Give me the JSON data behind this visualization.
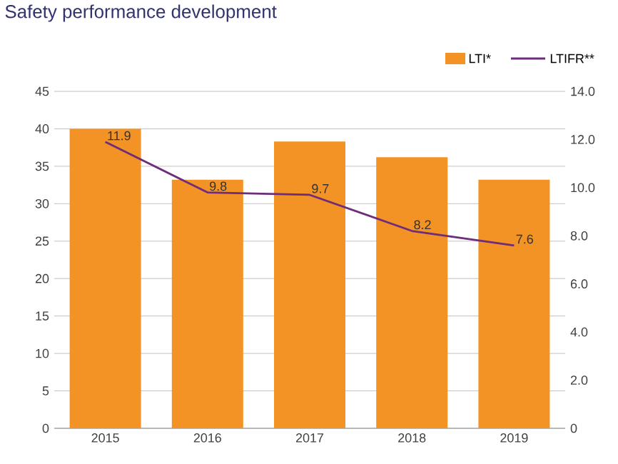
{
  "chart_data": {
    "type": "bar",
    "title": "Safety performance development",
    "categories": [
      "2015",
      "2016",
      "2017",
      "2018",
      "2019"
    ],
    "series": [
      {
        "name": "LTI*",
        "color": "#f39325",
        "values": [
          40,
          33.2,
          38.3,
          36.2,
          33.2
        ]
      },
      {
        "name": "LTIFR**",
        "type": "line",
        "axis": "y2",
        "color": "#6e2c7a",
        "values": [
          11.9,
          9.8,
          9.7,
          8.2,
          7.6
        ],
        "value_labels": [
          "11.9",
          "9.8",
          "9.7",
          "8.2",
          "7.6"
        ]
      }
    ],
    "ylim": [
      0,
      45
    ],
    "yticks": [
      0,
      5,
      10,
      15,
      20,
      25,
      30,
      35,
      40,
      45
    ],
    "y2lim": [
      0,
      14
    ],
    "y2ticks": [
      0,
      {
        "value": 2,
        "label": "2.0"
      },
      {
        "value": 4,
        "label": "4.0"
      },
      {
        "value": 6,
        "label": "6.0"
      },
      {
        "value": 8,
        "label": "8.0"
      },
      {
        "value": 10,
        "label": "10.0"
      },
      {
        "value": 12,
        "label": "12.0"
      },
      {
        "value": 14,
        "label": "14.0"
      }
    ],
    "grid": "y",
    "legend": "top right",
    "marker": "none",
    "line_style": "solid"
  }
}
